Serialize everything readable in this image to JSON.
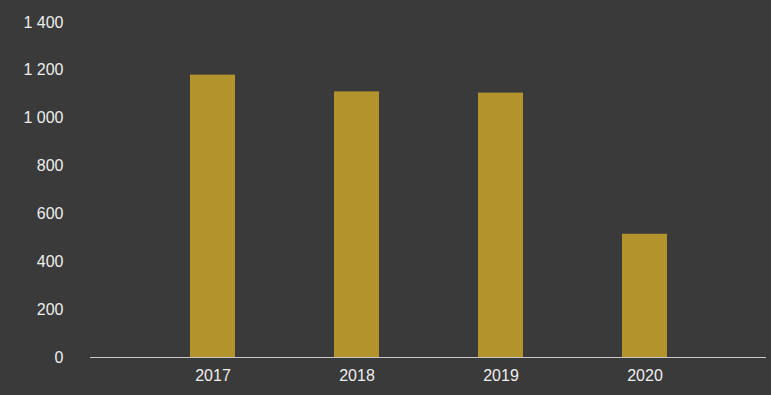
{
  "chart_data": {
    "type": "bar",
    "categories": [
      "2017",
      "2018",
      "2019",
      "2020"
    ],
    "values": [
      1180,
      1110,
      1105,
      515
    ],
    "color": "#c9a42a",
    "ylim": [
      0,
      1400
    ],
    "yticks": [
      0,
      200,
      400,
      600,
      800,
      {
        "value": 1000,
        "label": "1 000"
      },
      {
        "value": 1200,
        "label": "1 200"
      },
      {
        "value": 1400,
        "label": "1 400"
      }
    ],
    "grid": false
  }
}
